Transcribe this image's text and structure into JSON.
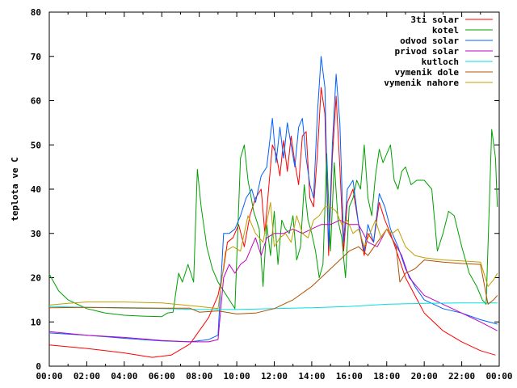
{
  "chart_data": {
    "type": "line",
    "title": "",
    "xlabel": "",
    "ylabel": "teplota ve C",
    "xlim": [
      0,
      24
    ],
    "ylim": [
      0,
      80
    ],
    "grid": false,
    "legend_position": "top-right",
    "x_tick_labels": [
      "00:00",
      "02:00",
      "04:00",
      "06:00",
      "08:00",
      "10:00",
      "12:00",
      "14:00",
      "16:00",
      "18:00",
      "20:00",
      "22:00",
      "00:00"
    ],
    "y_tick_labels": [
      "0",
      "10",
      "20",
      "30",
      "40",
      "50",
      "60",
      "70",
      "80"
    ],
    "series": [
      {
        "name": "3ti solar",
        "color": "#ff0000",
        "points": [
          [
            0,
            4.8
          ],
          [
            2,
            4
          ],
          [
            4,
            3
          ],
          [
            5.5,
            2
          ],
          [
            6.5,
            2.5
          ],
          [
            7.5,
            5
          ],
          [
            8.5,
            11
          ],
          [
            9,
            16
          ],
          [
            9.3,
            22
          ],
          [
            9.5,
            28
          ],
          [
            9.8,
            29
          ],
          [
            10.1,
            32
          ],
          [
            10.4,
            27
          ],
          [
            10.7,
            34
          ],
          [
            11,
            38
          ],
          [
            11.3,
            40
          ],
          [
            11.5,
            30
          ],
          [
            11.7,
            40
          ],
          [
            11.9,
            50
          ],
          [
            12.1,
            48
          ],
          [
            12.3,
            43
          ],
          [
            12.5,
            51
          ],
          [
            12.7,
            44
          ],
          [
            12.9,
            52
          ],
          [
            13.1,
            46
          ],
          [
            13.3,
            41
          ],
          [
            13.5,
            52
          ],
          [
            13.7,
            53
          ],
          [
            13.9,
            38
          ],
          [
            14.1,
            36
          ],
          [
            14.3,
            48
          ],
          [
            14.5,
            63
          ],
          [
            14.7,
            57
          ],
          [
            14.9,
            25
          ],
          [
            15.1,
            47
          ],
          [
            15.3,
            61
          ],
          [
            15.5,
            45
          ],
          [
            15.7,
            26
          ],
          [
            15.9,
            37
          ],
          [
            16.2,
            40
          ],
          [
            16.5,
            32
          ],
          [
            16.8,
            25
          ],
          [
            17,
            30
          ],
          [
            17.3,
            28
          ],
          [
            17.6,
            37
          ],
          [
            17.9,
            33
          ],
          [
            18.2,
            30
          ],
          [
            18.6,
            25
          ],
          [
            19,
            20
          ],
          [
            19.5,
            16
          ],
          [
            20,
            12
          ],
          [
            21,
            8
          ],
          [
            22,
            5.5
          ],
          [
            23,
            3.5
          ],
          [
            23.8,
            2.5
          ]
        ]
      },
      {
        "name": "kotel",
        "color": "#00a000",
        "points": [
          [
            0,
            20.8
          ],
          [
            0.5,
            17
          ],
          [
            1,
            15
          ],
          [
            2,
            13
          ],
          [
            3,
            12
          ],
          [
            4,
            11.5
          ],
          [
            5,
            11.3
          ],
          [
            6,
            11.2
          ],
          [
            6.3,
            12
          ],
          [
            6.6,
            12.2
          ],
          [
            6.9,
            21
          ],
          [
            7.1,
            19
          ],
          [
            7.4,
            23
          ],
          [
            7.7,
            19
          ],
          [
            7.9,
            44.5
          ],
          [
            8.1,
            36
          ],
          [
            8.4,
            27
          ],
          [
            8.7,
            22
          ],
          [
            9,
            19
          ],
          [
            9.3,
            17
          ],
          [
            9.6,
            15
          ],
          [
            9.9,
            13
          ],
          [
            10.2,
            47
          ],
          [
            10.4,
            50
          ],
          [
            10.6,
            42
          ],
          [
            10.9,
            35
          ],
          [
            11.2,
            31
          ],
          [
            11.4,
            18
          ],
          [
            11.6,
            32
          ],
          [
            11.8,
            25
          ],
          [
            12,
            35
          ],
          [
            12.2,
            23
          ],
          [
            12.4,
            33
          ],
          [
            12.6,
            31
          ],
          [
            12.8,
            30
          ],
          [
            13,
            34
          ],
          [
            13.2,
            24
          ],
          [
            13.4,
            27
          ],
          [
            13.6,
            41
          ],
          [
            13.8,
            33
          ],
          [
            14,
            30
          ],
          [
            14.2,
            26
          ],
          [
            14.4,
            20
          ],
          [
            14.6,
            23
          ],
          [
            14.8,
            48
          ],
          [
            15,
            26
          ],
          [
            15.2,
            46
          ],
          [
            15.4,
            33
          ],
          [
            15.6,
            29
          ],
          [
            15.8,
            20
          ],
          [
            16,
            36
          ],
          [
            16.2,
            38
          ],
          [
            16.4,
            42
          ],
          [
            16.6,
            40
          ],
          [
            16.8,
            50
          ],
          [
            17,
            38
          ],
          [
            17.2,
            34
          ],
          [
            17.4,
            43
          ],
          [
            17.6,
            49
          ],
          [
            17.8,
            46
          ],
          [
            18,
            48
          ],
          [
            18.2,
            50
          ],
          [
            18.4,
            42
          ],
          [
            18.6,
            40
          ],
          [
            18.8,
            44
          ],
          [
            19,
            45
          ],
          [
            19.3,
            41
          ],
          [
            19.6,
            42
          ],
          [
            20,
            42
          ],
          [
            20.4,
            40
          ],
          [
            20.7,
            26
          ],
          [
            21,
            30
          ],
          [
            21.3,
            35
          ],
          [
            21.6,
            34
          ],
          [
            22,
            27
          ],
          [
            22.4,
            21
          ],
          [
            22.8,
            18
          ],
          [
            23.1,
            15
          ],
          [
            23.3,
            14
          ],
          [
            23.6,
            53.5
          ],
          [
            23.8,
            47
          ],
          [
            23.9,
            36
          ]
        ]
      },
      {
        "name": "odvod solar",
        "color": "#0060ff",
        "points": [
          [
            0,
            7.5
          ],
          [
            2,
            7
          ],
          [
            4,
            6.3
          ],
          [
            6,
            5.7
          ],
          [
            7.5,
            5.5
          ],
          [
            8.5,
            6
          ],
          [
            9,
            7
          ],
          [
            9.3,
            30
          ],
          [
            9.6,
            30
          ],
          [
            9.9,
            31
          ],
          [
            10.2,
            34
          ],
          [
            10.5,
            38
          ],
          [
            10.8,
            40
          ],
          [
            11,
            37
          ],
          [
            11.3,
            43
          ],
          [
            11.6,
            45
          ],
          [
            11.9,
            56
          ],
          [
            12.1,
            46
          ],
          [
            12.3,
            54
          ],
          [
            12.5,
            47
          ],
          [
            12.7,
            55
          ],
          [
            12.9,
            50
          ],
          [
            13.1,
            45
          ],
          [
            13.3,
            54
          ],
          [
            13.5,
            56
          ],
          [
            13.7,
            47
          ],
          [
            13.9,
            41
          ],
          [
            14.1,
            38
          ],
          [
            14.3,
            57
          ],
          [
            14.5,
            70
          ],
          [
            14.7,
            63
          ],
          [
            14.9,
            27
          ],
          [
            15.1,
            50
          ],
          [
            15.3,
            66
          ],
          [
            15.5,
            55
          ],
          [
            15.7,
            28
          ],
          [
            15.9,
            40
          ],
          [
            16.2,
            42
          ],
          [
            16.5,
            32
          ],
          [
            16.8,
            26
          ],
          [
            17,
            32
          ],
          [
            17.3,
            28
          ],
          [
            17.6,
            39
          ],
          [
            17.9,
            36
          ],
          [
            18.2,
            31
          ],
          [
            18.6,
            27
          ],
          [
            19,
            22
          ],
          [
            19.5,
            18
          ],
          [
            20,
            15
          ],
          [
            21,
            13
          ],
          [
            22,
            12
          ],
          [
            23,
            10.5
          ],
          [
            23.9,
            9.5
          ]
        ]
      },
      {
        "name": "privod solar",
        "color": "#c000c0",
        "points": [
          [
            0,
            7.8
          ],
          [
            2,
            7
          ],
          [
            4,
            6.5
          ],
          [
            6,
            5.8
          ],
          [
            7.5,
            5.5
          ],
          [
            8.5,
            5.5
          ],
          [
            9,
            6
          ],
          [
            9.3,
            20
          ],
          [
            9.6,
            23
          ],
          [
            9.9,
            21
          ],
          [
            10.2,
            23
          ],
          [
            10.5,
            24
          ],
          [
            10.8,
            27
          ],
          [
            11,
            29
          ],
          [
            11.3,
            25
          ],
          [
            11.6,
            29
          ],
          [
            12,
            30
          ],
          [
            12.5,
            30
          ],
          [
            13,
            31
          ],
          [
            13.5,
            30
          ],
          [
            14,
            31
          ],
          [
            14.5,
            32
          ],
          [
            15,
            32
          ],
          [
            15.5,
            33
          ],
          [
            16,
            32
          ],
          [
            16.5,
            32
          ],
          [
            17,
            28
          ],
          [
            17.5,
            27
          ],
          [
            18,
            31
          ],
          [
            18.4,
            28
          ],
          [
            18.8,
            25
          ],
          [
            19.2,
            20
          ],
          [
            20,
            16
          ],
          [
            21,
            14
          ],
          [
            22,
            12
          ],
          [
            23,
            10
          ],
          [
            23.9,
            8
          ]
        ]
      },
      {
        "name": "kutloch",
        "color": "#00e0e0",
        "points": [
          [
            0,
            13.5
          ],
          [
            2,
            13.3
          ],
          [
            4,
            13.1
          ],
          [
            6,
            13
          ],
          [
            8,
            12.8
          ],
          [
            10,
            12.8
          ],
          [
            12,
            13
          ],
          [
            14,
            13.2
          ],
          [
            16,
            13.5
          ],
          [
            18,
            14
          ],
          [
            20,
            14.2
          ],
          [
            22,
            14.3
          ],
          [
            23.9,
            14.3
          ]
        ]
      },
      {
        "name": "vymenik dole",
        "color": "#b05000",
        "points": [
          [
            0,
            13.2
          ],
          [
            2,
            13.3
          ],
          [
            4,
            13.2
          ],
          [
            6,
            13.1
          ],
          [
            7.5,
            13.1
          ],
          [
            8,
            12.2
          ],
          [
            9,
            12.5
          ],
          [
            10,
            11.8
          ],
          [
            11,
            12
          ],
          [
            12,
            13
          ],
          [
            13,
            15
          ],
          [
            14,
            18
          ],
          [
            15,
            22
          ],
          [
            16,
            26
          ],
          [
            16.5,
            27
          ],
          [
            17,
            25
          ],
          [
            17.5,
            28
          ],
          [
            18,
            31
          ],
          [
            18.5,
            27
          ],
          [
            18.7,
            19
          ],
          [
            19,
            21
          ],
          [
            19.5,
            22
          ],
          [
            20,
            24
          ],
          [
            21,
            23.5
          ],
          [
            22,
            23.2
          ],
          [
            23,
            23
          ],
          [
            23.4,
            14
          ],
          [
            23.7,
            15
          ],
          [
            23.9,
            16
          ]
        ]
      },
      {
        "name": "vymenik nahore",
        "color": "#c0a000",
        "points": [
          [
            0,
            13.8
          ],
          [
            1,
            14.2
          ],
          [
            2,
            14.5
          ],
          [
            4,
            14.5
          ],
          [
            6,
            14.3
          ],
          [
            8,
            13.5
          ],
          [
            9,
            13
          ],
          [
            9.4,
            26
          ],
          [
            9.8,
            27
          ],
          [
            10.2,
            26
          ],
          [
            10.6,
            34
          ],
          [
            11,
            30
          ],
          [
            11.4,
            28
          ],
          [
            11.8,
            37
          ],
          [
            12,
            27
          ],
          [
            12.3,
            29
          ],
          [
            12.6,
            30
          ],
          [
            12.9,
            28
          ],
          [
            13.2,
            34
          ],
          [
            13.5,
            30
          ],
          [
            13.8,
            29
          ],
          [
            14.1,
            33
          ],
          [
            14.4,
            34
          ],
          [
            14.7,
            36
          ],
          [
            15,
            36
          ],
          [
            15.3,
            35
          ],
          [
            15.6,
            32
          ],
          [
            15.9,
            33
          ],
          [
            16.2,
            30
          ],
          [
            16.5,
            31
          ],
          [
            16.8,
            27
          ],
          [
            17.1,
            30
          ],
          [
            17.4,
            33
          ],
          [
            17.7,
            29
          ],
          [
            18,
            31
          ],
          [
            18.3,
            30
          ],
          [
            18.6,
            31
          ],
          [
            19,
            27
          ],
          [
            19.5,
            25
          ],
          [
            20,
            24.5
          ],
          [
            21,
            24
          ],
          [
            22,
            23.8
          ],
          [
            23,
            23.5
          ],
          [
            23.4,
            18
          ],
          [
            23.7,
            19.5
          ],
          [
            23.9,
            21
          ]
        ]
      }
    ]
  }
}
